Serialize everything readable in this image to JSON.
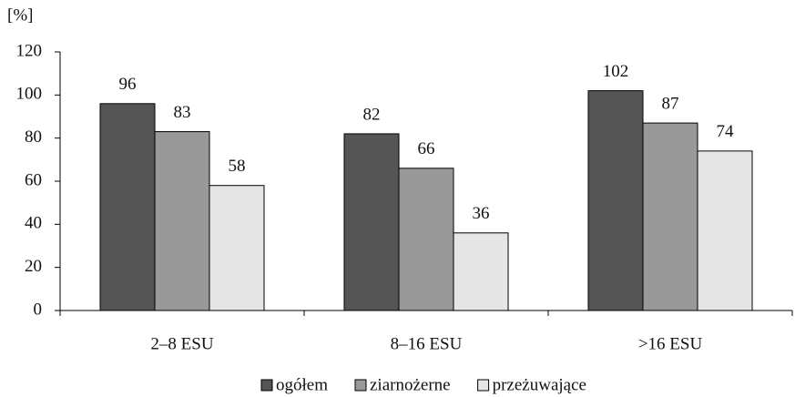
{
  "chart_data": {
    "type": "bar",
    "y_label": "[%]",
    "categories": [
      "2–8 ESU",
      "8–16 ESU",
      ">16 ESU"
    ],
    "series": [
      {
        "name": "ogółem",
        "color": "#555555",
        "values": [
          96,
          82,
          102
        ]
      },
      {
        "name": "ziarnożerne",
        "color": "#999999",
        "values": [
          83,
          66,
          87
        ]
      },
      {
        "name": "przeżuwające",
        "color": "#e6e6e6",
        "values": [
          58,
          36,
          74
        ]
      }
    ],
    "ylim": [
      0,
      120
    ],
    "yticks": [
      0,
      20,
      40,
      60,
      80,
      100,
      120
    ],
    "grid": false,
    "legend": "bottom"
  }
}
